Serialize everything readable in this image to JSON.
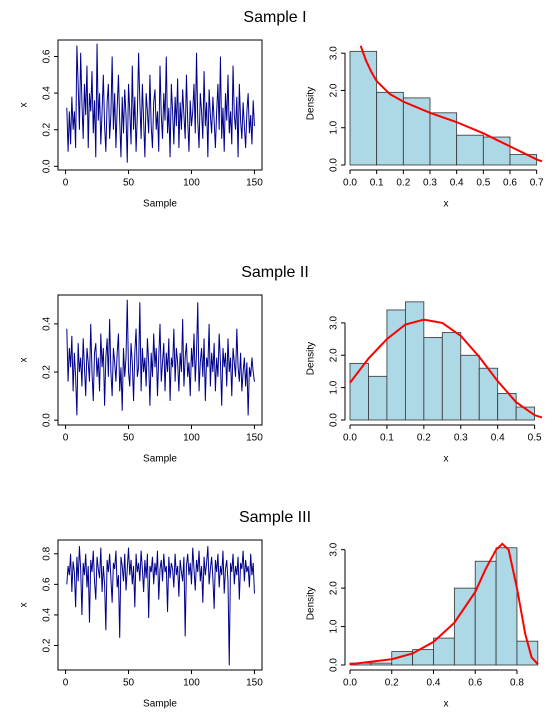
{
  "chart_data": [
    {
      "type": "line",
      "title": "Sample I",
      "xlabel": "Sample",
      "ylabel": "x",
      "color": "#00008b",
      "xlim": [
        -6,
        156
      ],
      "xticks": [
        0,
        50,
        100,
        150
      ],
      "ylim": [
        -0.02,
        0.69
      ],
      "yticks": [
        {
          "value": 0,
          "label": "0.0"
        },
        0.2,
        0.4,
        0.6
      ],
      "values": [
        0.32,
        0.08,
        0.3,
        0.12,
        0.38,
        0.2,
        0.3,
        0.1,
        0.66,
        0.45,
        0.2,
        0.62,
        0.35,
        0.15,
        0.45,
        0.28,
        0.55,
        0.1,
        0.4,
        0.3,
        0.52,
        0.18,
        0.36,
        0.05,
        0.67,
        0.25,
        0.4,
        0.12,
        0.3,
        0.5,
        0.22,
        0.08,
        0.35,
        0.45,
        0.15,
        0.28,
        0.6,
        0.2,
        0.4,
        0.1,
        0.32,
        0.5,
        0.25,
        0.05,
        0.38,
        0.18,
        0.42,
        0.28,
        0.02,
        0.45,
        0.3,
        0.12,
        0.55,
        0.2,
        0.38,
        0.08,
        0.28,
        0.62,
        0.35,
        0.15,
        0.45,
        0.25,
        0.05,
        0.4,
        0.3,
        0.18,
        0.5,
        0.22,
        0.1,
        0.35,
        0.42,
        0.2,
        0.3,
        0.08,
        0.55,
        0.28,
        0.15,
        0.4,
        0.25,
        0.6,
        0.18,
        0.32,
        0.05,
        0.45,
        0.3,
        0.12,
        0.38,
        0.22,
        0.48,
        0.1,
        0.35,
        0.2,
        0.42,
        0.28,
        0.15,
        0.5,
        0.25,
        0.08,
        0.36,
        0.22,
        0.3,
        0.45,
        0.18,
        0.62,
        0.25,
        0.1,
        0.4,
        0.3,
        0.15,
        0.52,
        0.22,
        0.35,
        0.05,
        0.42,
        0.28,
        0.18,
        0.38,
        0.25,
        0.1,
        0.3,
        0.45,
        0.2,
        0.6,
        0.15,
        0.32,
        0.08,
        0.4,
        0.25,
        0.5,
        0.18,
        0.3,
        0.12,
        0.55,
        0.28,
        0.2,
        0.38,
        0.05,
        0.45,
        0.25,
        0.15,
        0.35,
        0.22,
        0.1,
        0.3,
        0.4,
        0.18,
        0.28,
        0.12,
        0.36,
        0.22
      ]
    },
    {
      "type": "histogram",
      "xlabel": "x",
      "ylabel": "Density",
      "color": "#add8e6",
      "curve_color": "#ff0000",
      "bins": [
        0,
        0.1,
        0.2,
        0.3,
        0.4,
        0.5,
        0.6,
        0.7
      ],
      "values": [
        3.05,
        1.95,
        1.8,
        1.4,
        0.8,
        0.75,
        0.28
      ],
      "xlim": [
        0,
        0.72
      ],
      "xticks": [
        {
          "value": 0,
          "label": "0.0"
        },
        0.1,
        0.2,
        0.3,
        0.4,
        0.5,
        0.6,
        0.7
      ],
      "ylim": [
        0,
        3.3
      ],
      "yticks": [
        {
          "value": 0,
          "label": "0.0"
        },
        {
          "value": 1,
          "label": "1.0"
        },
        {
          "value": 2,
          "label": "2.0"
        },
        {
          "value": 3,
          "label": "3.0"
        }
      ],
      "curve": {
        "x": [
          0.04,
          0.06,
          0.08,
          0.1,
          0.15,
          0.2,
          0.3,
          0.4,
          0.5,
          0.6,
          0.7,
          0.72
        ],
        "y": [
          3.2,
          2.8,
          2.5,
          2.25,
          1.9,
          1.7,
          1.4,
          1.15,
          0.85,
          0.5,
          0.15,
          0.1
        ]
      }
    },
    {
      "type": "line",
      "title": "Sample II",
      "xlabel": "Sample",
      "ylabel": "x",
      "color": "#00008b",
      "xlim": [
        -6,
        156
      ],
      "xticks": [
        0,
        50,
        100,
        150
      ],
      "ylim": [
        -0.02,
        0.52
      ],
      "yticks": [
        {
          "value": 0,
          "label": "0.0"
        },
        0.2,
        0.4
      ],
      "values": [
        0.38,
        0.16,
        0.3,
        0.22,
        0.35,
        0.12,
        0.28,
        0.18,
        0.02,
        0.32,
        0.2,
        0.26,
        0.14,
        0.34,
        0.22,
        0.1,
        0.3,
        0.24,
        0.16,
        0.4,
        0.2,
        0.08,
        0.28,
        0.32,
        0.18,
        0.26,
        0.12,
        0.36,
        0.22,
        0.3,
        0.06,
        0.26,
        0.34,
        0.18,
        0.42,
        0.2,
        0.1,
        0.3,
        0.24,
        0.16,
        0.28,
        0.36,
        0.12,
        0.22,
        0.04,
        0.3,
        0.18,
        0.26,
        0.5,
        0.2,
        0.14,
        0.32,
        0.24,
        0.08,
        0.28,
        0.38,
        0.18,
        0.22,
        0.49,
        0.12,
        0.3,
        0.2,
        0.26,
        0.14,
        0.34,
        0.24,
        0.06,
        0.28,
        0.18,
        0.36,
        0.22,
        0.3,
        0.1,
        0.26,
        0.4,
        0.16,
        0.24,
        0.32,
        0.12,
        0.28,
        0.2,
        0.34,
        0.08,
        0.26,
        0.22,
        0.38,
        0.16,
        0.3,
        0.24,
        0.12,
        0.28,
        0.2,
        0.42,
        0.14,
        0.26,
        0.32,
        0.18,
        0.24,
        0.1,
        0.3,
        0.22,
        0.36,
        0.16,
        0.28,
        0.49,
        0.12,
        0.24,
        0.3,
        0.18,
        0.34,
        0.08,
        0.26,
        0.22,
        0.4,
        0.14,
        0.28,
        0.2,
        0.32,
        0.12,
        0.26,
        0.18,
        0.36,
        0.24,
        0.06,
        0.3,
        0.22,
        0.28,
        0.14,
        0.34,
        0.2,
        0.26,
        0.1,
        0.3,
        0.24,
        0.18,
        0.38,
        0.22,
        0.16,
        0.28,
        0.12,
        0.2,
        0.26,
        0.14,
        0.24,
        0.02,
        0.22,
        0.18,
        0.26,
        0.2,
        0.16
      ]
    },
    {
      "type": "histogram",
      "xlabel": "x",
      "ylabel": "Density",
      "color": "#add8e6",
      "curve_color": "#ff0000",
      "bins": [
        0,
        0.05,
        0.1,
        0.15,
        0.2,
        0.25,
        0.3,
        0.35,
        0.4,
        0.45,
        0.5
      ],
      "values": [
        1.75,
        1.35,
        3.4,
        3.65,
        2.55,
        2.7,
        2.0,
        1.6,
        0.82,
        0.4
      ],
      "xlim": [
        0,
        0.52
      ],
      "xticks": [
        {
          "value": 0,
          "label": "0.0"
        },
        0.1,
        0.2,
        0.3,
        0.4,
        0.5
      ],
      "ylim": [
        0,
        3.8
      ],
      "yticks": [
        {
          "value": 0,
          "label": "0.0"
        },
        {
          "value": 1,
          "label": "1.0"
        },
        {
          "value": 2,
          "label": "2.0"
        },
        {
          "value": 3,
          "label": "3.0"
        }
      ],
      "curve": {
        "x": [
          0,
          0.05,
          0.1,
          0.15,
          0.2,
          0.25,
          0.3,
          0.35,
          0.4,
          0.45,
          0.5,
          0.52
        ],
        "y": [
          1.15,
          1.9,
          2.5,
          2.95,
          3.1,
          3.0,
          2.6,
          1.95,
          1.2,
          0.55,
          0.15,
          0.08
        ]
      }
    },
    {
      "type": "line",
      "title": "Sample III",
      "xlabel": "Sample",
      "ylabel": "x",
      "color": "#00008b",
      "xlim": [
        -6,
        156
      ],
      "xticks": [
        0,
        50,
        100,
        150
      ],
      "ylim": [
        0.04,
        0.89
      ],
      "yticks": [
        0.2,
        0.4,
        0.6,
        0.8
      ],
      "values": [
        0.6,
        0.72,
        0.66,
        0.8,
        0.55,
        0.75,
        0.68,
        0.45,
        0.78,
        0.62,
        0.85,
        0.7,
        0.4,
        0.74,
        0.66,
        0.8,
        0.58,
        0.72,
        0.35,
        0.76,
        0.68,
        0.82,
        0.62,
        0.5,
        0.78,
        0.7,
        0.64,
        0.84,
        0.55,
        0.72,
        0.6,
        0.3,
        0.76,
        0.68,
        0.8,
        0.64,
        0.48,
        0.74,
        0.7,
        0.82,
        0.58,
        0.66,
        0.25,
        0.78,
        0.72,
        0.62,
        0.8,
        0.56,
        0.7,
        0.84,
        0.66,
        0.76,
        0.6,
        0.72,
        0.45,
        0.8,
        0.68,
        0.74,
        0.62,
        0.82,
        0.7,
        0.55,
        0.76,
        0.64,
        0.8,
        0.38,
        0.72,
        0.68,
        0.78,
        0.6,
        0.74,
        0.66,
        0.82,
        0.5,
        0.7,
        0.76,
        0.62,
        0.8,
        0.68,
        0.72,
        0.42,
        0.78,
        0.64,
        0.74,
        0.7,
        0.58,
        0.8,
        0.66,
        0.72,
        0.52,
        0.76,
        0.68,
        0.62,
        0.78,
        0.26,
        0.72,
        0.8,
        0.66,
        0.74,
        0.6,
        0.84,
        0.7,
        0.56,
        0.76,
        0.68,
        0.82,
        0.62,
        0.72,
        0.48,
        0.78,
        0.66,
        0.74,
        0.85,
        0.6,
        0.7,
        0.78,
        0.64,
        0.44,
        0.76,
        0.68,
        0.8,
        0.58,
        0.72,
        0.66,
        0.82,
        0.54,
        0.7,
        0.76,
        0.62,
        0.07,
        0.74,
        0.68,
        0.8,
        0.6,
        0.72,
        0.66,
        0.78,
        0.5,
        0.74,
        0.7,
        0.82,
        0.62,
        0.76,
        0.68,
        0.72,
        0.58,
        0.8,
        0.66,
        0.74,
        0.54
      ]
    },
    {
      "type": "histogram",
      "xlabel": "x",
      "ylabel": "Density",
      "color": "#add8e6",
      "curve_color": "#ff0000",
      "bins": [
        0,
        0.1,
        0.2,
        0.3,
        0.4,
        0.5,
        0.6,
        0.7,
        0.8,
        0.9
      ],
      "values": [
        0.05,
        0.05,
        0.35,
        0.4,
        0.7,
        2.0,
        2.7,
        3.05,
        0.62
      ],
      "xlim": [
        0,
        0.92
      ],
      "xticks": [
        {
          "value": 0,
          "label": "0.0"
        },
        0.2,
        0.4,
        0.6,
        0.8
      ],
      "ylim": [
        0,
        3.2
      ],
      "yticks": [
        {
          "value": 0,
          "label": "0.0"
        },
        {
          "value": 1,
          "label": "1.0"
        },
        {
          "value": 2,
          "label": "2.0"
        },
        {
          "value": 3,
          "label": "3.0"
        }
      ],
      "curve": {
        "x": [
          0,
          0.2,
          0.3,
          0.4,
          0.5,
          0.6,
          0.65,
          0.7,
          0.73,
          0.76,
          0.8,
          0.84,
          0.87,
          0.9
        ],
        "y": [
          0.02,
          0.15,
          0.3,
          0.6,
          1.1,
          1.9,
          2.5,
          3.0,
          3.15,
          3.0,
          2.0,
          0.8,
          0.2,
          0.02
        ]
      }
    }
  ]
}
